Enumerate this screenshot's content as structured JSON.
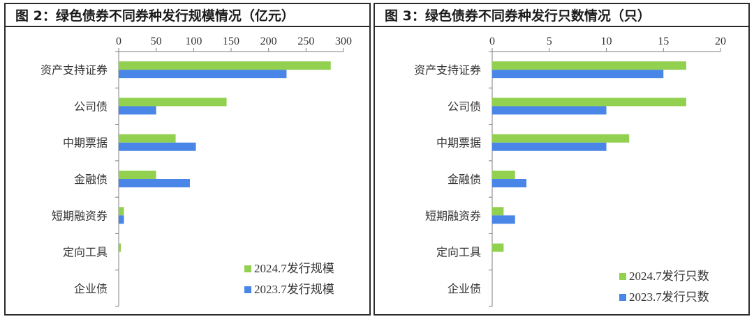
{
  "chart_data": [
    {
      "type": "bar",
      "orientation": "horizontal",
      "title": "图 2：绿色债券不同券种发行规模情况（亿元）",
      "categories": [
        "资产支持证券",
        "公司债",
        "中期票据",
        "金融债",
        "短期融资券",
        "定向工具",
        "企业债"
      ],
      "series": [
        {
          "name": "2024.7发行规模",
          "color": "#92d050",
          "values": [
            283,
            144,
            76,
            50,
            7,
            3,
            0
          ]
        },
        {
          "name": "2023.7发行规模",
          "color": "#4a86e8",
          "values": [
            224,
            50,
            103,
            95,
            7,
            0,
            0
          ]
        }
      ],
      "xlim": [
        0,
        300
      ],
      "xticks": [
        0,
        50,
        100,
        150,
        200,
        250,
        300
      ],
      "xlabel": "",
      "ylabel": "",
      "legend_position": "bottom-right",
      "grid": false
    },
    {
      "type": "bar",
      "orientation": "horizontal",
      "title": "图 3：绿色债券不同券种发行只数情况（只）",
      "categories": [
        "资产支持证券",
        "公司债",
        "中期票据",
        "金融债",
        "短期融资券",
        "定向工具",
        "企业债"
      ],
      "series": [
        {
          "name": "2024.7发行只数",
          "color": "#92d050",
          "values": [
            17,
            17,
            12,
            2,
            1,
            1,
            0
          ]
        },
        {
          "name": "2023.7发行只数",
          "color": "#4a86e8",
          "values": [
            15,
            10,
            10,
            3,
            2,
            0,
            0
          ]
        }
      ],
      "xlim": [
        0,
        20
      ],
      "xticks": [
        0,
        5,
        10,
        15,
        20
      ],
      "xlabel": "",
      "ylabel": "",
      "legend_position": "bottom-right",
      "grid": false
    }
  ]
}
